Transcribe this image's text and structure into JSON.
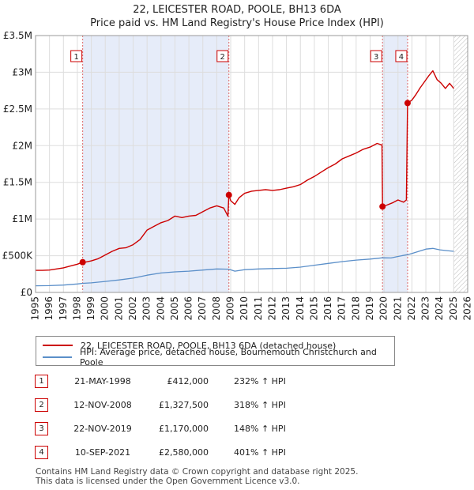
{
  "chart_data": {
    "type": "line",
    "title": "22, LEICESTER ROAD, POOLE, BH13 6DA",
    "subtitle": "Price paid vs. HM Land Registry's House Price Index (HPI)",
    "xlabel": "",
    "ylabel": "",
    "xlim": [
      1995,
      2026
    ],
    "ylim": [
      0,
      3500000
    ],
    "x_ticks": [
      1995,
      1996,
      1997,
      1998,
      1999,
      2000,
      2001,
      2002,
      2003,
      2004,
      2005,
      2006,
      2007,
      2008,
      2009,
      2010,
      2011,
      2012,
      2013,
      2014,
      2015,
      2016,
      2017,
      2018,
      2019,
      2020,
      2021,
      2022,
      2023,
      2024,
      2025,
      2026
    ],
    "y_ticks": [
      {
        "value": 0,
        "label": "£0"
      },
      {
        "value": 500000,
        "label": "£500K"
      },
      {
        "value": 1000000,
        "label": "£1M"
      },
      {
        "value": 1500000,
        "label": "£1.5M"
      },
      {
        "value": 2000000,
        "label": "£2M"
      },
      {
        "value": 2500000,
        "label": "£2.5M"
      },
      {
        "value": 3000000,
        "label": "£3M"
      },
      {
        "value": 3500000,
        "label": "£3.5M"
      }
    ],
    "grid": true,
    "colors": {
      "property": "#cc0000",
      "hpi": "#5b8fc9",
      "shade": "#e6ecf9",
      "grid": "#dddddd",
      "marker_line": "#dd6666"
    },
    "shaded_periods": [
      [
        1998.38,
        2008.87
      ],
      [
        2019.89,
        2021.69
      ]
    ],
    "forecast_hatch_from": 2025.0,
    "series": [
      {
        "name": "22, LEICESTER ROAD, POOLE, BH13 6DA (detached house)",
        "key": "property",
        "x": [
          1995.0,
          1995.5,
          1996.0,
          1996.5,
          1997.0,
          1997.5,
          1998.0,
          1998.38,
          1998.5,
          1999.0,
          1999.5,
          2000.0,
          2000.5,
          2001.0,
          2001.5,
          2002.0,
          2002.5,
          2003.0,
          2003.5,
          2004.0,
          2004.5,
          2005.0,
          2005.5,
          2006.0,
          2006.5,
          2007.0,
          2007.5,
          2008.0,
          2008.5,
          2008.8,
          2008.87,
          2009.0,
          2009.3,
          2009.6,
          2010.0,
          2010.5,
          2011.0,
          2011.5,
          2012.0,
          2012.5,
          2013.0,
          2013.5,
          2014.0,
          2014.5,
          2015.0,
          2015.5,
          2016.0,
          2016.5,
          2017.0,
          2017.5,
          2018.0,
          2018.5,
          2019.0,
          2019.5,
          2019.85,
          2019.89,
          2020.2,
          2020.6,
          2021.0,
          2021.4,
          2021.6,
          2021.69,
          2022.0,
          2022.3,
          2022.6,
          2022.9,
          2023.2,
          2023.5,
          2023.8,
          2024.1,
          2024.4,
          2024.7,
          2025.0
        ],
        "values": [
          300000,
          300000,
          305000,
          320000,
          335000,
          360000,
          385000,
          412000,
          410000,
          430000,
          460000,
          510000,
          560000,
          600000,
          610000,
          650000,
          720000,
          850000,
          900000,
          950000,
          980000,
          1040000,
          1020000,
          1040000,
          1050000,
          1100000,
          1150000,
          1180000,
          1150000,
          1040000,
          1327500,
          1250000,
          1200000,
          1290000,
          1350000,
          1380000,
          1390000,
          1400000,
          1390000,
          1400000,
          1420000,
          1440000,
          1470000,
          1530000,
          1580000,
          1640000,
          1700000,
          1750000,
          1820000,
          1860000,
          1900000,
          1950000,
          1980000,
          2030000,
          2010000,
          1170000,
          1190000,
          1220000,
          1260000,
          1230000,
          1260000,
          2580000,
          2620000,
          2700000,
          2790000,
          2870000,
          2950000,
          3020000,
          2900000,
          2850000,
          2780000,
          2850000,
          2780000
        ]
      },
      {
        "name": "HPI: Average price, detached house, Bournemouth Christchurch and Poole",
        "key": "hpi",
        "x": [
          1995.0,
          1996.0,
          1997.0,
          1998.0,
          1998.38,
          1999.0,
          2000.0,
          2001.0,
          2002.0,
          2003.0,
          2004.0,
          2005.0,
          2006.0,
          2007.0,
          2008.0,
          2008.87,
          2009.3,
          2010.0,
          2011.0,
          2012.0,
          2013.0,
          2014.0,
          2015.0,
          2016.0,
          2017.0,
          2018.0,
          2019.0,
          2019.89,
          2020.5,
          2021.0,
          2021.69,
          2022.0,
          2022.5,
          2023.0,
          2023.5,
          2024.0,
          2024.5,
          2025.0
        ],
        "values": [
          90000,
          93000,
          100000,
          115000,
          124000,
          130000,
          150000,
          170000,
          195000,
          235000,
          265000,
          280000,
          290000,
          305000,
          320000,
          317000,
          290000,
          310000,
          320000,
          325000,
          330000,
          345000,
          370000,
          395000,
          420000,
          440000,
          455000,
          472000,
          470000,
          490000,
          515000,
          530000,
          560000,
          590000,
          600000,
          580000,
          570000,
          560000
        ]
      }
    ],
    "sale_markers": [
      {
        "label": "1",
        "x": 1998.38,
        "value": 412000
      },
      {
        "label": "2",
        "x": 2008.87,
        "value": 1327500
      },
      {
        "label": "3",
        "x": 2019.89,
        "value": 1170000
      },
      {
        "label": "4",
        "x": 2021.69,
        "value": 2580000
      }
    ]
  },
  "legend": {
    "property_label": "22, LEICESTER ROAD, POOLE, BH13 6DA (detached house)",
    "hpi_label": "HPI: Average price, detached house, Bournemouth Christchurch and Poole"
  },
  "sales": [
    {
      "num": "1",
      "date": "21-MAY-1998",
      "price": "£412,000",
      "hpi": "232% ↑ HPI"
    },
    {
      "num": "2",
      "date": "12-NOV-2008",
      "price": "£1,327,500",
      "hpi": "318% ↑ HPI"
    },
    {
      "num": "3",
      "date": "22-NOV-2019",
      "price": "£1,170,000",
      "hpi": "148% ↑ HPI"
    },
    {
      "num": "4",
      "date": "10-SEP-2021",
      "price": "£2,580,000",
      "hpi": "401% ↑ HPI"
    }
  ],
  "footer": {
    "line1": "Contains HM Land Registry data © Crown copyright and database right 2025.",
    "line2": "This data is licensed under the Open Government Licence v3.0."
  }
}
